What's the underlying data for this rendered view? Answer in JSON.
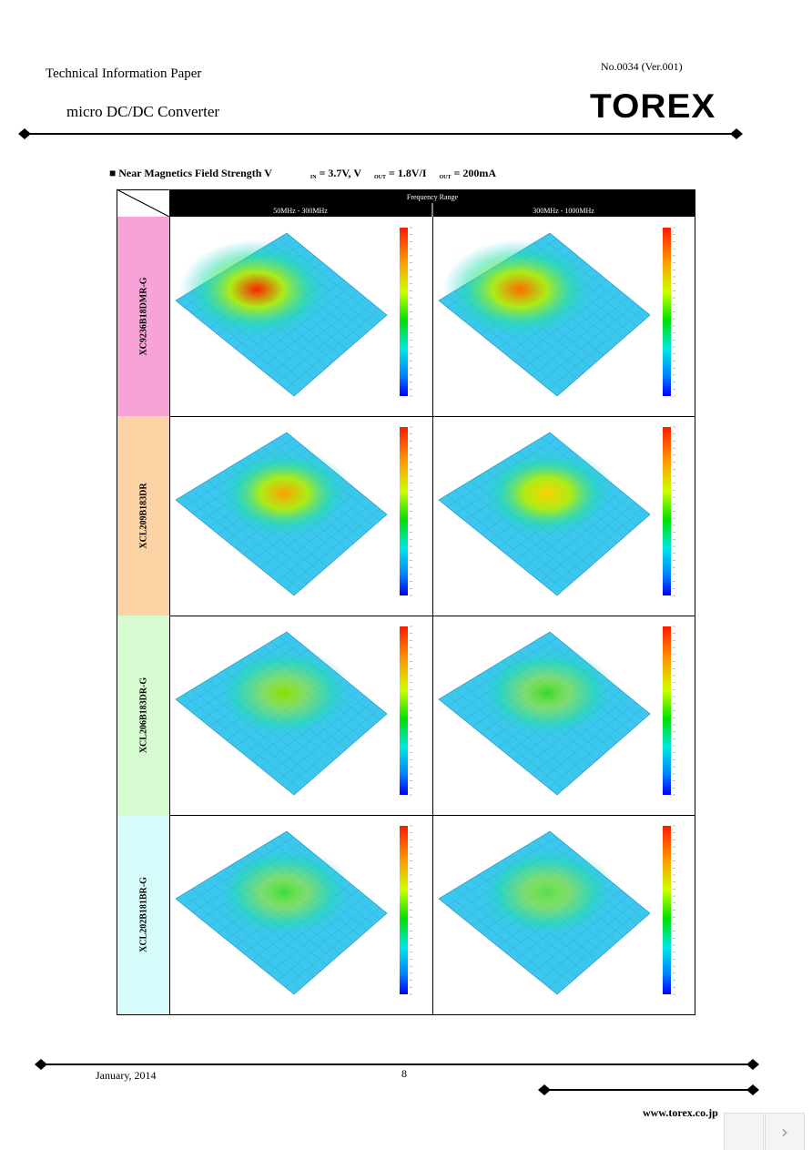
{
  "header": {
    "paper_title": "Technical Information Paper",
    "product": "micro DC/DC Converter",
    "doc_number": "No.0034 (Ver.001)",
    "logo": "TOREX"
  },
  "section": {
    "bullet": "■",
    "title_parts": [
      "Near Magnetics Field Strength V",
      "IN",
      " = 3.7V, V",
      "OUT",
      " = 1.8V/I",
      "OUT",
      " = 200mA"
    ]
  },
  "table": {
    "header": "Frequency Range",
    "columns": [
      "50MHz - 300MHz",
      "300MHz - 1000MHz"
    ],
    "rows": [
      "XC9236B18DMR-G",
      "XCL209B183DR",
      "XCL206B183DR-G",
      "XCL202B181BR-G"
    ]
  },
  "footer": {
    "date": "January, 2014",
    "page": "8",
    "url": "www.torex.co.jp"
  }
}
